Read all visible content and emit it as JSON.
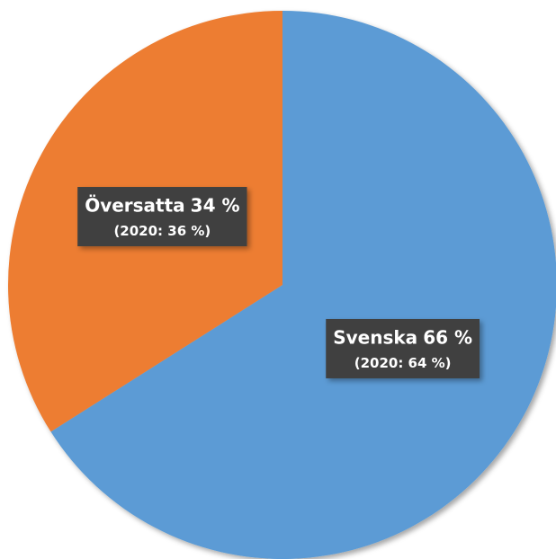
{
  "chart_data": {
    "type": "pie",
    "categories": [
      "Svenska",
      "Översatta"
    ],
    "values": [
      66,
      34
    ],
    "value_labels": [
      "66 %",
      "34 %"
    ],
    "annotations": [
      "(2020: 64 %)",
      "(2020: 36 %)"
    ],
    "colors": [
      "#5b9bd5",
      "#ed7d31"
    ],
    "start_angle": 0,
    "direction": "clockwise"
  }
}
